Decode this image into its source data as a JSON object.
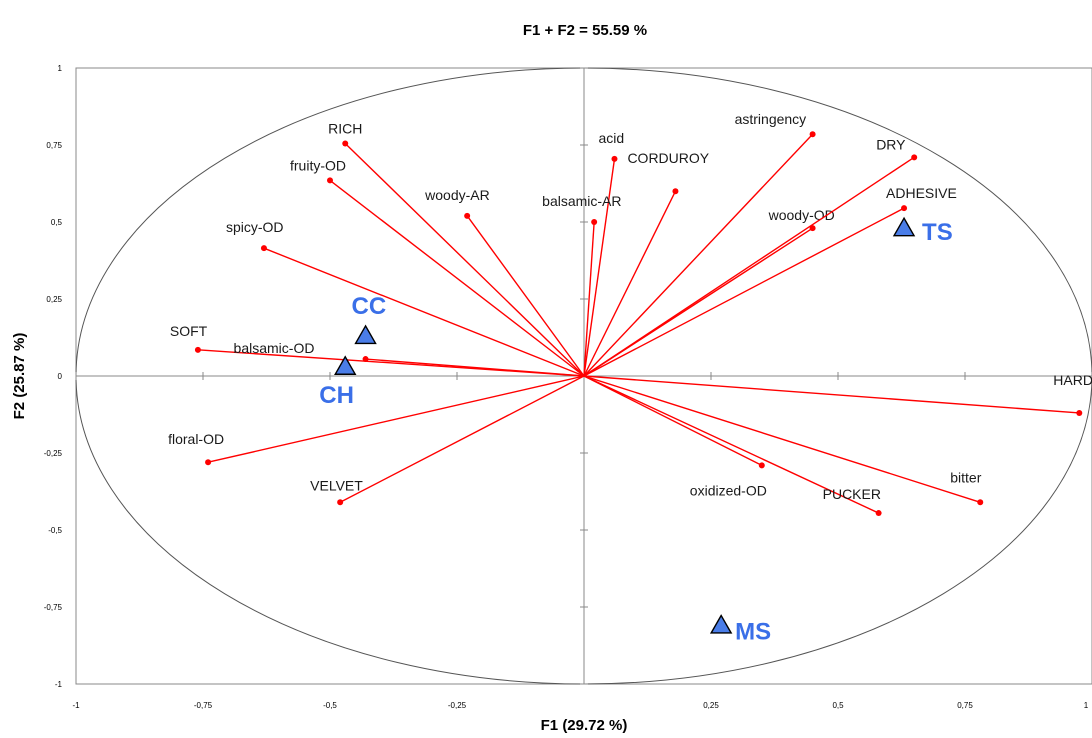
{
  "chart_data": {
    "type": "scatter",
    "title": "F1 + F2 = 55.59 %",
    "xlabel": "F1 (29.72 %)",
    "ylabel": "F2 (25.87 %)",
    "xlim": [
      -1,
      1
    ],
    "ylim": [
      -1,
      1
    ],
    "x_ticks": [
      "-1",
      "-0,75",
      "-0,5",
      "-0,25",
      "0",
      "0,25",
      "0,5",
      "0,75",
      "1"
    ],
    "y_ticks": [
      "-1",
      "-0,75",
      "-0,5",
      "-0,25",
      "0",
      "0,25",
      "0,5",
      "0,75",
      "1"
    ],
    "grid": false,
    "colors": {
      "variables": "#ff0000",
      "observations": "#4a7de8",
      "observation_text": "#3a6fe8",
      "circle": "#555555"
    },
    "variables": [
      {
        "name": "RICH",
        "x": -0.47,
        "y": 0.755
      },
      {
        "name": "fruity-OD",
        "x": -0.5,
        "y": 0.635
      },
      {
        "name": "woody-AR",
        "x": -0.23,
        "y": 0.52
      },
      {
        "name": "spicy-OD",
        "x": -0.63,
        "y": 0.415
      },
      {
        "name": "SOFT",
        "x": -0.76,
        "y": 0.085
      },
      {
        "name": "balsamic-OD",
        "x": -0.43,
        "y": 0.055
      },
      {
        "name": "floral-OD",
        "x": -0.74,
        "y": -0.28
      },
      {
        "name": "VELVET",
        "x": -0.48,
        "y": -0.41
      },
      {
        "name": "acid",
        "x": 0.06,
        "y": 0.705
      },
      {
        "name": "balsamic-AR",
        "x": 0.02,
        "y": 0.5
      },
      {
        "name": "CORDUROY",
        "x": 0.18,
        "y": 0.6
      },
      {
        "name": "astringency",
        "x": 0.45,
        "y": 0.785
      },
      {
        "name": "woody-OD",
        "x": 0.45,
        "y": 0.48
      },
      {
        "name": "DRY",
        "x": 0.65,
        "y": 0.71
      },
      {
        "name": "ADHESIVE",
        "x": 0.63,
        "y": 0.545
      },
      {
        "name": "HARD",
        "x": 0.975,
        "y": -0.12
      },
      {
        "name": "oxidized-OD",
        "x": 0.35,
        "y": -0.29
      },
      {
        "name": "PUCKER",
        "x": 0.58,
        "y": -0.445
      },
      {
        "name": "bitter",
        "x": 0.78,
        "y": -0.41
      }
    ],
    "observations": [
      {
        "name": "CC",
        "x": -0.43,
        "y": 0.13
      },
      {
        "name": "CH",
        "x": -0.47,
        "y": 0.03
      },
      {
        "name": "TS",
        "x": 0.63,
        "y": 0.48
      },
      {
        "name": "MS",
        "x": 0.27,
        "y": -0.81
      }
    ]
  }
}
